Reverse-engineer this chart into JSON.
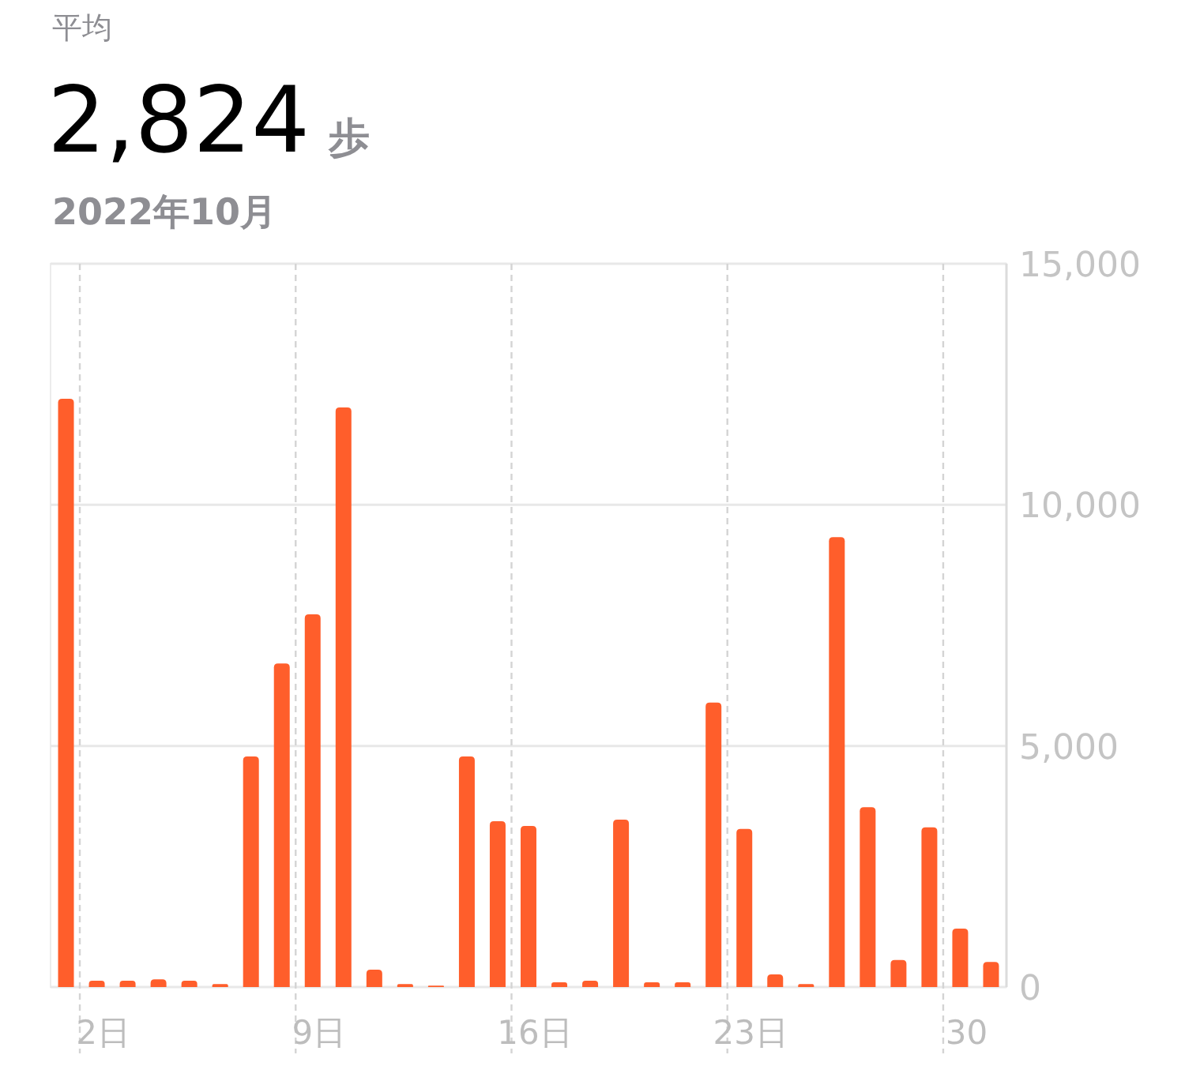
{
  "chart_data": {
    "type": "bar",
    "title": "2,824",
    "subtitle": "2022年10月",
    "annotations": [
      "平均",
      "歩"
    ],
    "categories": [
      null,
      "2日",
      null,
      null,
      null,
      null,
      null,
      null,
      "9日",
      null,
      null,
      null,
      null,
      null,
      null,
      "16日",
      null,
      null,
      null,
      null,
      null,
      null,
      "23日",
      null,
      null,
      null,
      null,
      null,
      null,
      "30",
      null
    ],
    "values": [
      12200,
      130,
      130,
      160,
      130,
      60,
      4780,
      6710,
      7730,
      12020,
      360,
      60,
      30,
      4780,
      3440,
      3340,
      100,
      130,
      3470,
      100,
      100,
      5900,
      3280,
      260,
      60,
      9330,
      3730,
      560,
      3310,
      1210,
      520
    ],
    "color": "#ff5e2b",
    "ylim": [
      0,
      15000
    ],
    "yticks": [
      0,
      {
        "value": 5000,
        "label": "5,000"
      },
      {
        "value": 10000,
        "label": "10,000"
      },
      {
        "value": 15000,
        "label": "15,000"
      }
    ],
    "grid": true
  }
}
